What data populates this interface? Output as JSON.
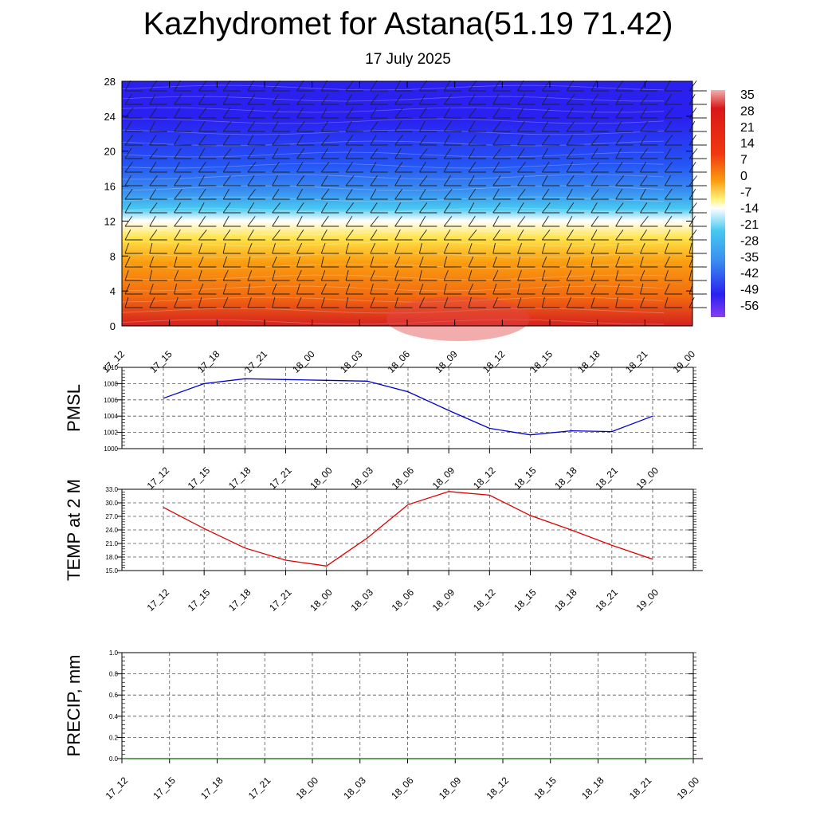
{
  "title": "Kazhydromet for Astana(51.19 71.42)",
  "subtitle": "17 July 2025",
  "chart_data": [
    {
      "type": "heatmap",
      "name": "cross-section",
      "y_ticks": [
        "0",
        "4",
        "8",
        "12",
        "16",
        "20",
        "24",
        "28"
      ],
      "ylim": [
        0,
        28
      ],
      "x_ticks": [
        "17_12",
        "17_15",
        "17_18",
        "17_21",
        "18_00",
        "18_03",
        "18_06",
        "18_09",
        "18_12",
        "18_15",
        "18_18",
        "18_21",
        "19_00"
      ],
      "colorbar_labels": [
        "35",
        "28",
        "21",
        "14",
        "7",
        "0",
        "-7",
        "-14",
        "-21",
        "-28",
        "-35",
        "-42",
        "-49",
        "-56"
      ],
      "colors": {
        "surface": "#d42020",
        "warm_mid": "#f26a10",
        "orange": "#fa9d10",
        "yellow": "#ffe44a",
        "white": "#ffffff",
        "cyan": "#47c8f0",
        "light_blue": "#3a8ff0",
        "mid_blue": "#2555f5",
        "deep_blue": "#2a20f0"
      }
    },
    {
      "type": "line",
      "ylabel": "PMSL",
      "x_ticks": [
        "17_12",
        "17_15",
        "17_18",
        "17_21",
        "18_00",
        "18_03",
        "18_06",
        "18_09",
        "18_12",
        "18_15",
        "18_18",
        "18_21",
        "19_00"
      ],
      "y_ticks": [
        "1000",
        "1002",
        "1004",
        "1006",
        "1008",
        "1010"
      ],
      "ylim": [
        1000,
        1010
      ],
      "values": [
        1006.2,
        1008.0,
        1008.6,
        1008.5,
        1008.4,
        1008.3,
        1007.0,
        1004.7,
        1002.5,
        1001.7,
        1002.2,
        1002.1,
        1004.0
      ],
      "color": "#0000cc"
    },
    {
      "type": "line",
      "ylabel": "TEMP at 2 M",
      "x_ticks": [
        "17_12",
        "17_15",
        "17_18",
        "17_21",
        "18_00",
        "18_03",
        "18_06",
        "18_09",
        "18_12",
        "18_15",
        "18_18",
        "18_21",
        "19_00"
      ],
      "y_ticks": [
        "15.0",
        "18.0",
        "21.0",
        "24.0",
        "27.0",
        "30.0",
        "33.0"
      ],
      "ylim": [
        15,
        33
      ],
      "values": [
        29.0,
        24.3,
        20.0,
        17.3,
        16.0,
        22.2,
        29.6,
        32.5,
        31.7,
        27.2,
        24.0,
        20.6,
        17.5
      ],
      "color": "#dd0000"
    },
    {
      "type": "line",
      "ylabel": "PRECIP, mm",
      "x_ticks": [
        "17_12",
        "17_15",
        "17_18",
        "17_21",
        "18_00",
        "18_03",
        "18_06",
        "18_09",
        "18_12",
        "18_15",
        "18_18",
        "18_21",
        "19_00"
      ],
      "y_ticks": [
        "0.0",
        "0.2",
        "0.4",
        "0.6",
        "0.8",
        "1.0"
      ],
      "ylim": [
        0,
        1
      ],
      "values": [
        0,
        0,
        0,
        0,
        0,
        0,
        0,
        0,
        0,
        0,
        0,
        0,
        0
      ],
      "color": "#006600"
    }
  ]
}
